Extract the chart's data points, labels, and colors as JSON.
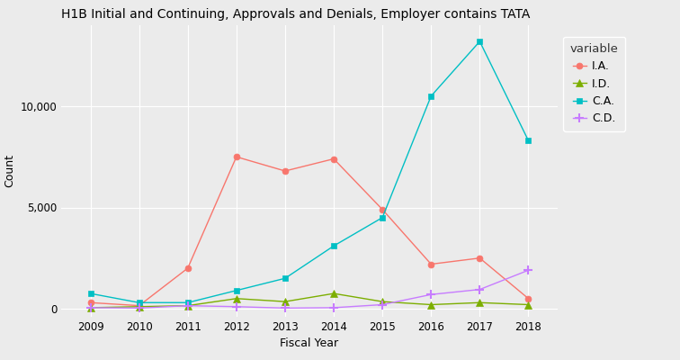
{
  "title": "H1B Initial and Continuing, Approvals and Denials, Employer contains TATA",
  "xlabel": "Fiscal Year",
  "ylabel": "Count",
  "legend_title": "variable",
  "years": [
    2009,
    2010,
    2011,
    2012,
    2013,
    2014,
    2015,
    2016,
    2017,
    2018
  ],
  "series": {
    "I.A.": {
      "values": [
        300,
        150,
        2000,
        7500,
        6800,
        7400,
        4900,
        2200,
        2500,
        500
      ],
      "color": "#F8766D",
      "marker": "o",
      "markersize": 5
    },
    "I.D.": {
      "values": [
        50,
        100,
        150,
        500,
        350,
        750,
        350,
        200,
        300,
        200
      ],
      "color": "#7CAE00",
      "marker": "^",
      "markersize": 6
    },
    "C.A.": {
      "values": [
        750,
        300,
        300,
        900,
        1500,
        3100,
        4500,
        10500,
        13200,
        8300
      ],
      "color": "#00BFC4",
      "marker": "s",
      "markersize": 5
    },
    "C.D.": {
      "values": [
        50,
        30,
        150,
        100,
        30,
        50,
        200,
        700,
        950,
        1900
      ],
      "color": "#C77CFF",
      "marker": "P",
      "markersize": 6
    }
  },
  "ylim": [
    -400,
    14000
  ],
  "yticks": [
    0,
    5000,
    10000
  ],
  "ytick_labels": [
    "0",
    "5,000",
    "10,000"
  ],
  "xlim": [
    2008.4,
    2018.6
  ],
  "background_color": "#EBEBEB",
  "panel_background": "#EBEBEB",
  "grid_color": "#FFFFFF",
  "title_fontsize": 10,
  "axis_label_fontsize": 9,
  "tick_fontsize": 8.5,
  "legend_fontsize": 9,
  "legend_title_fontsize": 9,
  "linewidth": 1.0
}
